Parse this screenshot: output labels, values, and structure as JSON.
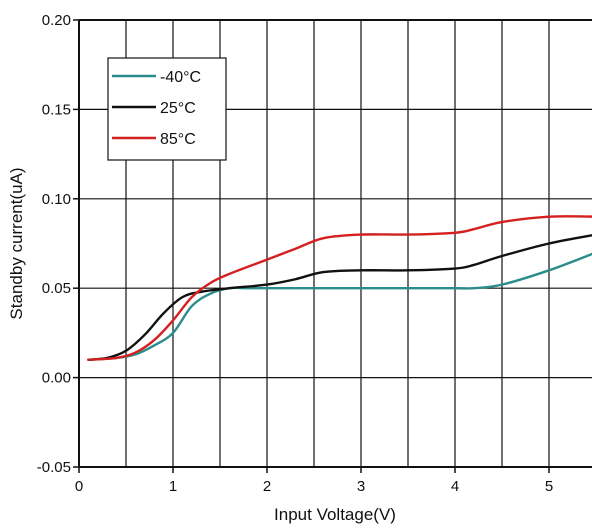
{
  "chart_data": {
    "type": "line",
    "xlabel": "Input Voltage(V)",
    "ylabel": "Standby current(uA)",
    "xlim": [
      0,
      5.5
    ],
    "ylim": [
      -0.05,
      0.2
    ],
    "x_ticks": [
      "0",
      "1",
      "2",
      "3",
      "4",
      "5"
    ],
    "y_ticks": [
      "-0.05",
      "0.00",
      "0.05",
      "0.10",
      "0.15",
      "0.20"
    ],
    "grid": true,
    "legend_position": "top-left",
    "series": [
      {
        "name": "-40°C",
        "color": "#2a8c8c",
        "x": [
          0.1,
          0.4,
          0.6,
          0.8,
          1.0,
          1.2,
          1.4,
          1.6,
          1.8,
          2.0,
          2.5,
          3.0,
          3.5,
          4.0,
          4.2,
          4.5,
          5.0,
          5.5
        ],
        "y": [
          0.01,
          0.011,
          0.013,
          0.018,
          0.025,
          0.04,
          0.047,
          0.05,
          0.05,
          0.05,
          0.05,
          0.05,
          0.05,
          0.05,
          0.05,
          0.052,
          0.06,
          0.07
        ]
      },
      {
        "name": "25°C",
        "color": "#111111",
        "x": [
          0.1,
          0.3,
          0.5,
          0.7,
          0.9,
          1.1,
          1.3,
          1.6,
          2.0,
          2.3,
          2.6,
          3.0,
          3.5,
          4.0,
          4.2,
          4.5,
          5.0,
          5.5
        ],
        "y": [
          0.01,
          0.011,
          0.015,
          0.024,
          0.036,
          0.045,
          0.048,
          0.05,
          0.052,
          0.055,
          0.059,
          0.06,
          0.06,
          0.061,
          0.063,
          0.068,
          0.075,
          0.08
        ]
      },
      {
        "name": "85°C",
        "color": "#d42020",
        "x": [
          0.1,
          0.4,
          0.6,
          0.8,
          1.0,
          1.2,
          1.4,
          1.6,
          2.0,
          2.3,
          2.6,
          3.0,
          3.5,
          4.0,
          4.2,
          4.5,
          5.0,
          5.5
        ],
        "y": [
          0.01,
          0.011,
          0.014,
          0.021,
          0.032,
          0.045,
          0.053,
          0.058,
          0.066,
          0.072,
          0.078,
          0.08,
          0.08,
          0.081,
          0.083,
          0.087,
          0.09,
          0.09
        ]
      }
    ]
  }
}
